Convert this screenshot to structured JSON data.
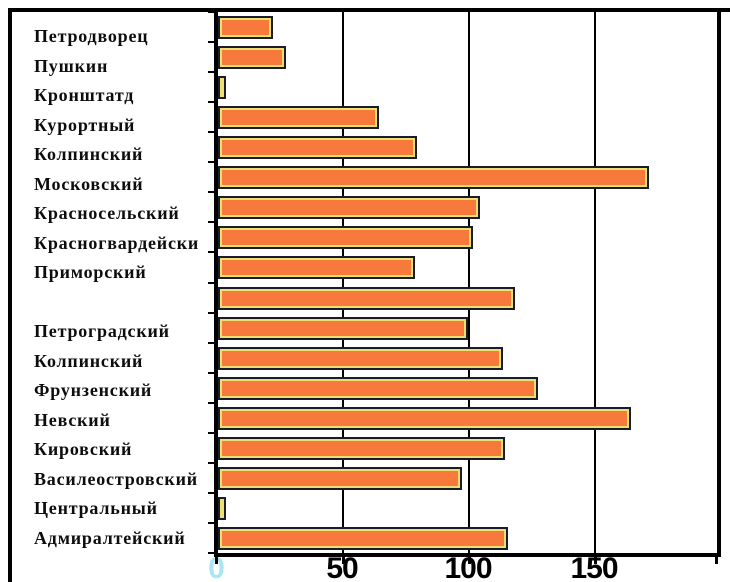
{
  "chart_data": {
    "type": "bar",
    "orientation": "horizontal",
    "title": "",
    "xlabel": "",
    "ylabel": "",
    "categories": [
      "Петродворец",
      "Пушкин",
      "Кронштатд",
      "Курортный",
      "Колпинский",
      "Московский",
      "Красносельский",
      "Красногвардейски",
      "Приморский",
      "",
      "Петроградский",
      "Колпинский",
      "Фрунзенский",
      "Невский",
      "Кировский",
      "Василеостровский",
      "Центральный",
      "Адмиралтейский"
    ],
    "values": [
      22,
      27,
      3,
      64,
      79,
      171,
      104,
      101,
      78,
      118,
      99,
      113,
      127,
      164,
      114,
      97,
      3,
      115
    ],
    "x_ticks": [
      0,
      50,
      100,
      150
    ],
    "xlim": [
      0,
      198
    ],
    "grid": "vertical-gridlines-at-50-100-150",
    "legend": "none",
    "colors": {
      "bar_fill": "#F8793C",
      "bar_inner_border": "#EDE072",
      "bar_outline": "#1B1B2E",
      "axis": "#000000",
      "gridline": "#000000",
      "zero_tick_label": "#A9E6EF",
      "tick_label": "#000000",
      "label_text": "#0D0D0D",
      "background": "#FFFFFF"
    }
  }
}
